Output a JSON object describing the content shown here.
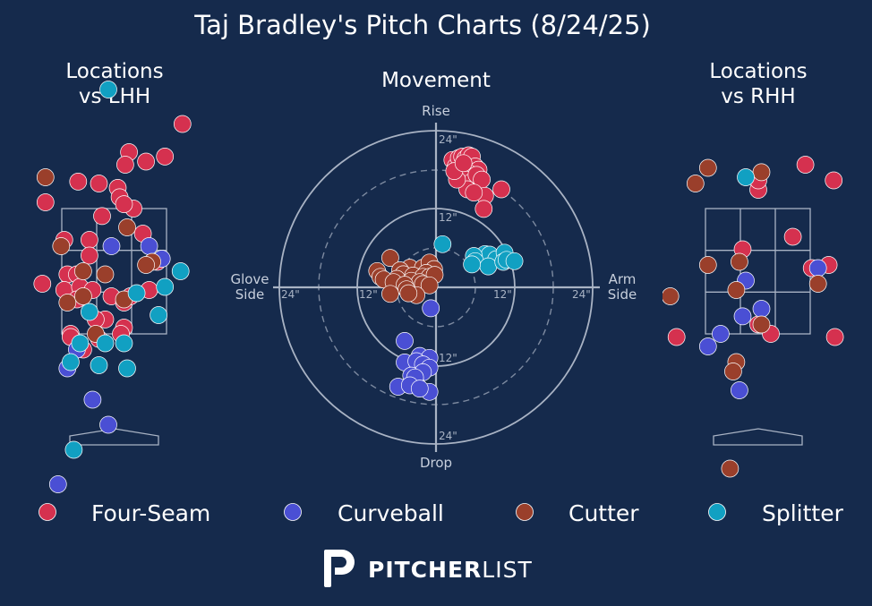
{
  "title": "Taj Bradley's Pitch Charts (8/24/25)",
  "colors": {
    "background": "#152a4c",
    "text": "#ffffff",
    "grid": "#a9b3c4",
    "four_seam": "#d5314f",
    "curveball": "#4a4fd4",
    "cutter": "#9a3f2b",
    "splitter": "#11a0c2"
  },
  "panels": {
    "lhh": {
      "title_line1": "Locations",
      "title_line2": "vs LHH"
    },
    "movement": {
      "title": "Movement",
      "rise": "Rise",
      "drop": "Drop",
      "glove_line1": "Glove",
      "glove_line2": "Side",
      "arm_line1": "Arm",
      "arm_line2": "Side",
      "ring_labels": [
        "24\"",
        "12\"",
        "12\"",
        "24\"",
        "12\"",
        "24\"",
        "12\"",
        "24\""
      ]
    },
    "rhh": {
      "title_line1": "Locations",
      "title_line2": "vs RHH"
    }
  },
  "legend": [
    {
      "key": "four_seam",
      "label": "Four-Seam"
    },
    {
      "key": "curveball",
      "label": "Curveball"
    },
    {
      "key": "cutter",
      "label": "Cutter"
    },
    {
      "key": "splitter",
      "label": "Splitter"
    }
  ],
  "brand": {
    "bold": "PITCHER",
    "light": "LIST"
  },
  "chart_data": [
    {
      "type": "scatter",
      "panel": "Locations vs LHH",
      "units": "feet (catcher view); strike zone x -0.83..0.83, y 1.5..3.5",
      "series": [
        {
          "name": "Four-Seam",
          "points": [
            [
              1.08,
              4.85
            ],
            [
              0.23,
              4.4
            ],
            [
              0.17,
              4.2
            ],
            [
              0.05,
              3.83
            ],
            [
              -0.58,
              3.93
            ],
            [
              -0.25,
              3.9
            ],
            [
              -0.8,
              3.0
            ],
            [
              0.3,
              3.5
            ],
            [
              -0.4,
              3.0
            ],
            [
              0.5,
              4.25
            ],
            [
              0.8,
              4.33
            ],
            [
              0.08,
              3.68
            ],
            [
              0.15,
              3.57
            ],
            [
              -1.1,
              3.6
            ],
            [
              -0.2,
              3.38
            ],
            [
              0.68,
              2.65
            ],
            [
              -0.4,
              2.75
            ],
            [
              -0.75,
              2.45
            ],
            [
              -0.6,
              2.45
            ],
            [
              -0.8,
              2.2
            ],
            [
              -0.55,
              2.25
            ],
            [
              -0.35,
              2.2
            ],
            [
              -0.6,
              2.05
            ],
            [
              -0.05,
              2.1
            ],
            [
              0.15,
              2.0
            ],
            [
              -1.15,
              2.3
            ],
            [
              -0.15,
              1.73
            ],
            [
              -0.3,
              1.73
            ],
            [
              0.25,
              2.1
            ],
            [
              0.15,
              1.6
            ],
            [
              0.1,
              1.5
            ],
            [
              -0.7,
              1.5
            ],
            [
              -0.25,
              1.42
            ],
            [
              -0.7,
              1.45
            ],
            [
              -0.5,
              1.25
            ],
            [
              0.55,
              2.2
            ],
            [
              0.45,
              3.1
            ]
          ]
        },
        {
          "name": "Curveball",
          "points": [
            [
              -0.05,
              2.9
            ],
            [
              0.55,
              2.9
            ],
            [
              0.75,
              2.7
            ],
            [
              -0.6,
              1.25
            ],
            [
              -0.75,
              0.95
            ],
            [
              -0.35,
              0.45
            ],
            [
              -0.1,
              0.05
            ],
            [
              -0.9,
              -0.9
            ]
          ]
        },
        {
          "name": "Cutter",
          "points": [
            [
              -1.1,
              4.0
            ],
            [
              -0.85,
              2.9
            ],
            [
              0.6,
              2.65
            ],
            [
              -0.5,
              2.5
            ],
            [
              -0.15,
              2.45
            ],
            [
              0.5,
              2.6
            ],
            [
              0.2,
              3.2
            ],
            [
              -0.75,
              2.0
            ],
            [
              0.15,
              2.05
            ],
            [
              -0.5,
              2.1
            ],
            [
              -0.3,
              1.5
            ]
          ]
        },
        {
          "name": "Splitter",
          "points": [
            [
              -0.1,
              5.4
            ],
            [
              0.8,
              2.25
            ],
            [
              0.35,
              2.15
            ],
            [
              -0.4,
              1.85
            ],
            [
              -0.15,
              1.35
            ],
            [
              -0.55,
              1.35
            ],
            [
              0.15,
              1.35
            ],
            [
              -0.7,
              1.05
            ],
            [
              -0.25,
              1.0
            ],
            [
              0.2,
              0.95
            ],
            [
              0.7,
              1.8
            ],
            [
              -0.65,
              -0.35
            ],
            [
              1.05,
              2.5
            ]
          ]
        }
      ]
    },
    {
      "type": "scatter",
      "panel": "Movement",
      "units": "inches; x = horizontal break (glove side negative, arm side positive), y = induced vertical break",
      "xlim": [
        -24,
        24
      ],
      "ylim": [
        -24,
        24
      ],
      "rings": [
        12,
        24
      ],
      "series": [
        {
          "name": "Four-Seam",
          "points": [
            [
              2.5,
              19.5
            ],
            [
              3.0,
              18.5
            ],
            [
              3.5,
              19.8
            ],
            [
              4.0,
              20.0
            ],
            [
              4.5,
              19.7
            ],
            [
              5.0,
              20.2
            ],
            [
              5.5,
              20.0
            ],
            [
              6.0,
              18.5
            ],
            [
              6.5,
              18.0
            ],
            [
              5.0,
              17.5
            ],
            [
              4.0,
              18.0
            ],
            [
              3.5,
              17.5
            ],
            [
              4.5,
              16.5
            ],
            [
              5.2,
              16.0
            ],
            [
              6.2,
              17.2
            ],
            [
              7.0,
              16.5
            ],
            [
              7.5,
              14.0
            ],
            [
              10.0,
              15.0
            ],
            [
              4.8,
              15.0
            ],
            [
              5.8,
              14.5
            ],
            [
              3.2,
              16.5
            ],
            [
              2.8,
              17.8
            ],
            [
              4.2,
              19.0
            ],
            [
              7.3,
              12.0
            ]
          ]
        },
        {
          "name": "Curveball",
          "points": [
            [
              -0.8,
              -3.2
            ],
            [
              -4.8,
              -8.2
            ],
            [
              -2.5,
              -10.5
            ],
            [
              -1.0,
              -10.8
            ],
            [
              -4.8,
              -11.5
            ],
            [
              -3.0,
              -11.3
            ],
            [
              -2.0,
              -11.8
            ],
            [
              -1.0,
              -12.3
            ],
            [
              -2.0,
              -13.0
            ],
            [
              -3.8,
              -13.5
            ],
            [
              -3.0,
              -14.8
            ],
            [
              -5.8,
              -15.2
            ],
            [
              -3.2,
              -13.8
            ],
            [
              -1.0,
              -16.0
            ],
            [
              -4.0,
              -15.0
            ],
            [
              -2.5,
              -15.5
            ]
          ]
        },
        {
          "name": "Cutter",
          "points": [
            [
              -7.0,
              4.5
            ],
            [
              -4.0,
              3.0
            ],
            [
              -2.0,
              3.0
            ],
            [
              -1.0,
              3.8
            ],
            [
              -0.3,
              2.8
            ],
            [
              -1.5,
              2.2
            ],
            [
              -5.5,
              2.6
            ],
            [
              -5.0,
              2.0
            ],
            [
              -3.5,
              1.8
            ],
            [
              -2.0,
              1.6
            ],
            [
              -9.0,
              2.5
            ],
            [
              -8.5,
              1.6
            ],
            [
              -6.0,
              1.3
            ],
            [
              -3.8,
              1.0
            ],
            [
              -1.0,
              1.6
            ],
            [
              -0.2,
              1.9
            ],
            [
              -2.5,
              0.8
            ],
            [
              -8.0,
              1.2
            ],
            [
              -6.5,
              0.8
            ],
            [
              -2.0,
              0.5
            ],
            [
              -1.0,
              0.3
            ],
            [
              -4.8,
              0.4
            ],
            [
              -7.0,
              -1.0
            ],
            [
              -3.0,
              -1.2
            ],
            [
              -4.5,
              -0.3
            ],
            [
              -4.2,
              -0.9
            ]
          ]
        },
        {
          "name": "Splitter",
          "points": [
            [
              1.0,
              6.6
            ],
            [
              7.5,
              5.1
            ],
            [
              8.2,
              5.0
            ],
            [
              9.2,
              4.3
            ],
            [
              10.5,
              5.3
            ],
            [
              5.8,
              4.8
            ],
            [
              6.0,
              4.0
            ],
            [
              8.0,
              3.2
            ],
            [
              10.3,
              3.9
            ],
            [
              10.8,
              4.2
            ],
            [
              12.0,
              4.0
            ],
            [
              5.5,
              3.5
            ]
          ]
        }
      ]
    },
    {
      "type": "scatter",
      "panel": "Locations vs RHH",
      "units": "feet (catcher view); strike zone x -0.83..0.83, y 1.5..3.5",
      "series": [
        {
          "name": "Four-Seam",
          "points": [
            [
              0.0,
              3.8
            ],
            [
              0.75,
              4.2
            ],
            [
              1.2,
              3.95
            ],
            [
              0.0,
              3.95
            ],
            [
              -0.25,
              2.85
            ],
            [
              0.55,
              3.05
            ],
            [
              1.12,
              2.6
            ],
            [
              0.85,
              2.55
            ],
            [
              0.0,
              1.65
            ],
            [
              0.2,
              1.5
            ],
            [
              -1.3,
              1.45
            ],
            [
              1.22,
              1.45
            ]
          ]
        },
        {
          "name": "Curveball",
          "points": [
            [
              -0.25,
              1.78
            ],
            [
              0.05,
              1.9
            ],
            [
              0.95,
              2.55
            ],
            [
              -0.2,
              2.35
            ],
            [
              -0.6,
              1.5
            ],
            [
              -0.8,
              1.3
            ],
            [
              -0.3,
              0.6
            ]
          ]
        },
        {
          "name": "Cutter",
          "points": [
            [
              0.05,
              4.08
            ],
            [
              -0.8,
              4.15
            ],
            [
              -1.0,
              3.9
            ],
            [
              -0.3,
              2.65
            ],
            [
              -0.8,
              2.6
            ],
            [
              -1.4,
              2.1
            ],
            [
              0.95,
              2.3
            ],
            [
              -0.35,
              2.2
            ],
            [
              0.05,
              1.65
            ],
            [
              -0.35,
              1.05
            ],
            [
              -0.4,
              0.9
            ],
            [
              -0.45,
              -0.65
            ]
          ]
        },
        {
          "name": "Splitter",
          "points": [
            [
              -0.2,
              4.0
            ]
          ]
        }
      ]
    }
  ]
}
